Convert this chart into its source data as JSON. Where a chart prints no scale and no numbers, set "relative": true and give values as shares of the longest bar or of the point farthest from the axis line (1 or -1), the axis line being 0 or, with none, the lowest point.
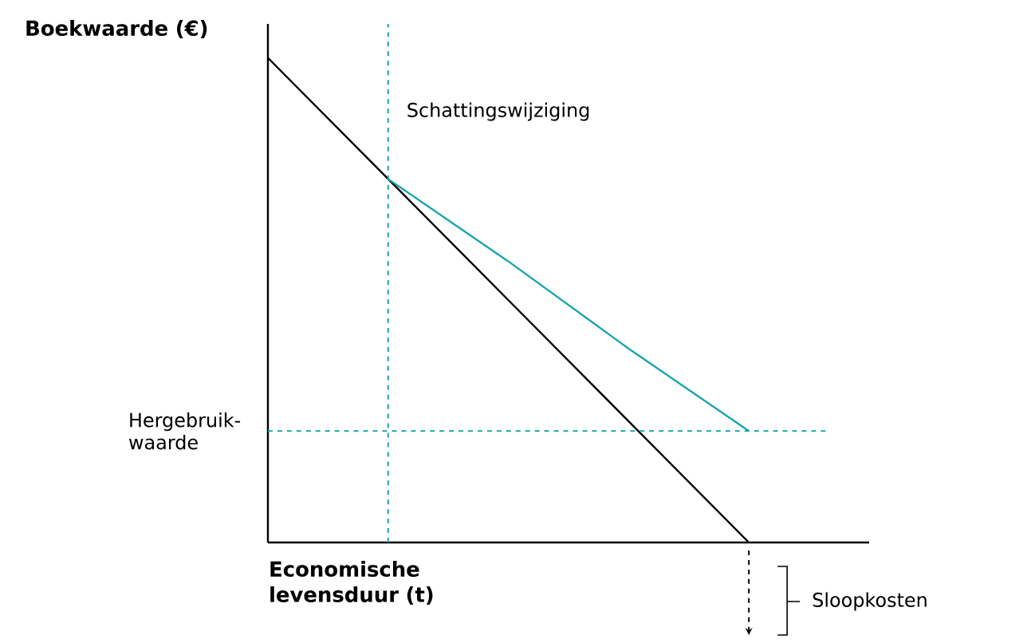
{
  "chart_data": {
    "type": "line",
    "relative": true,
    "ylabel": "Boekwaarde (€)",
    "xlabel": "Economische levensduur (t)",
    "categories": [
      null,
      null,
      null,
      null,
      null,
      null
    ],
    "series": [
      {
        "color": "#000000",
        "values": [
          1,
          0.75,
          0.5,
          0.25,
          0,
          null
        ]
      },
      {
        "color": "#1aa5ad",
        "values": [
          null,
          0.75,
          0.58,
          0.4,
          0.23,
          null
        ]
      }
    ],
    "ref_lines": [
      {
        "axis": "y",
        "value": 0.23,
        "label": "Hergebruik- waarde",
        "color": "#1aa5ad",
        "line_style": "dashed"
      }
    ],
    "annotations": [
      "Sloopkosten",
      "Schattingswijziging"
    ],
    "marker": "none",
    "line_style": "solid"
  }
}
